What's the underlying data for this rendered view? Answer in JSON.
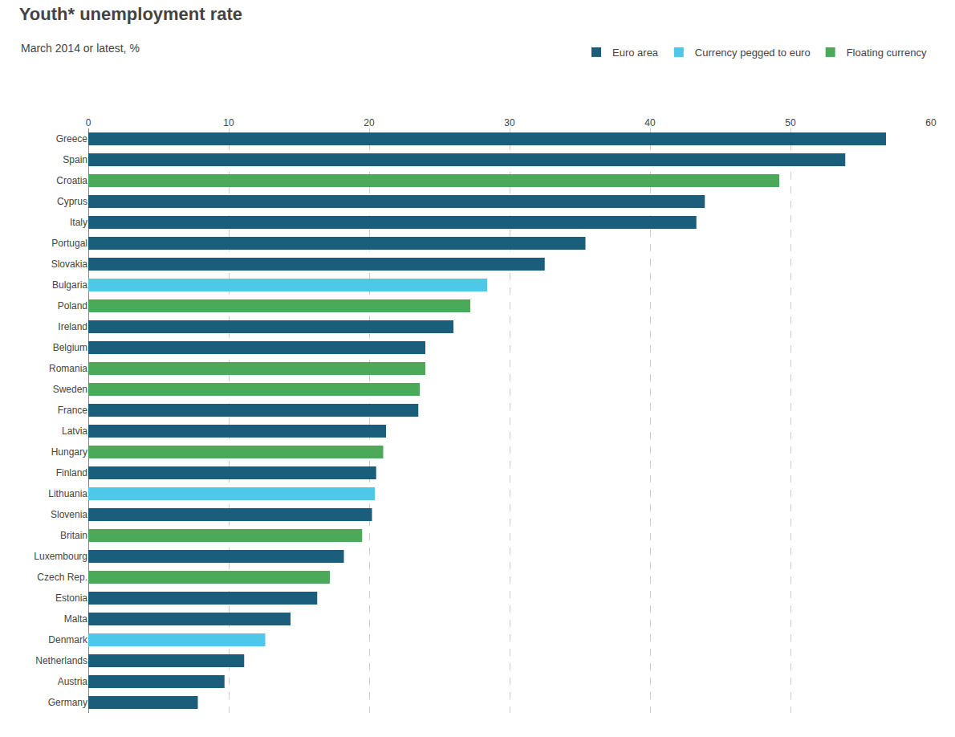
{
  "chart_data": {
    "type": "bar",
    "orientation": "horizontal",
    "title": "Youth* unemployment rate",
    "subtitle": "March 2014 or latest, %",
    "categories": [
      "Greece",
      "Spain",
      "Croatia",
      "Cyprus",
      "Italy",
      "Portugal",
      "Slovakia",
      "Bulgaria",
      "Poland",
      "Ireland",
      "Belgium",
      "Romania",
      "Sweden",
      "France",
      "Latvia",
      "Hungary",
      "Finland",
      "Lithuania",
      "Slovenia",
      "Britain",
      "Luxembourg",
      "Czech Rep.",
      "Estonia",
      "Malta",
      "Denmark",
      "Netherlands",
      "Austria",
      "Germany"
    ],
    "series": [
      {
        "name": "Euro area",
        "color": "#1b5e7b",
        "values": [
          56.8,
          53.9,
          null,
          43.9,
          43.3,
          35.4,
          32.5,
          null,
          null,
          26.0,
          24.0,
          null,
          null,
          23.5,
          21.2,
          null,
          20.5,
          null,
          20.2,
          null,
          18.2,
          null,
          16.3,
          14.4,
          null,
          11.1,
          9.7,
          7.8
        ]
      },
      {
        "name": "Currency pegged to euro",
        "color": "#4ec8e8",
        "values": [
          null,
          null,
          null,
          null,
          null,
          null,
          null,
          28.4,
          null,
          null,
          null,
          null,
          null,
          null,
          null,
          null,
          null,
          20.4,
          null,
          null,
          null,
          null,
          null,
          null,
          12.6,
          null,
          null,
          null
        ]
      },
      {
        "name": "Floating currency",
        "color": "#4aaa59",
        "values": [
          null,
          null,
          49.2,
          null,
          null,
          null,
          null,
          null,
          27.2,
          null,
          null,
          24.0,
          23.6,
          null,
          null,
          21.0,
          null,
          null,
          null,
          19.5,
          null,
          17.2,
          null,
          null,
          null,
          null,
          null,
          null
        ]
      }
    ],
    "xlim": [
      0,
      60
    ],
    "xticks": [
      0,
      10,
      20,
      30,
      40,
      50,
      60
    ],
    "grid": true,
    "legend": "upper right"
  }
}
